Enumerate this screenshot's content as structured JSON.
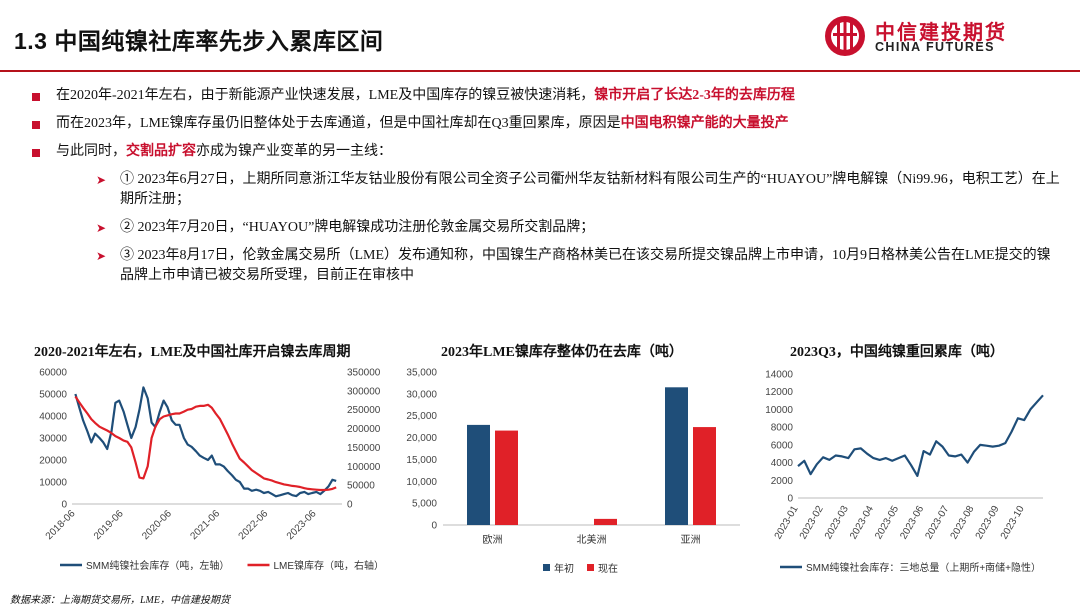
{
  "header": {
    "title": "1.3 中国纯镍社库率先步入累库区间",
    "logo_cn": "中信建投期货",
    "logo_en": "CHINA FUTURES",
    "accent_color": "#c8102e"
  },
  "bullets": [
    {
      "pre": "在2020年-2021年左右，由于新能源产业快速发展，LME及中国库存的镍豆被快速消耗，",
      "hl": "镍市开启了长达2-3年的去库历程",
      "post": ""
    },
    {
      "pre": "而在2023年，LME镍库存虽仍旧整体处于去库通道，但是中国社库却在Q3重回累库，原因是",
      "hl": "中国电积镍产能的大量投产",
      "post": ""
    },
    {
      "pre": "与此同时，",
      "hl": "交割品扩容",
      "post": "亦成为镍产业变革的另一主线："
    }
  ],
  "subbullets": [
    "① 2023年6月27日，上期所同意浙江华友钴业股份有限公司全资子公司衢州华友钴新材料有限公司生产的“HUAYOU”牌电解镍（Ni99.96，电积工艺）在上期所注册；",
    "② 2023年7月20日，“HUAYOU”牌电解镍成功注册伦敦金属交易所交割品牌；",
    "③ 2023年8月17日，伦敦金属交易所（LME）发布通知称，中国镍生产商格林美已在该交易所提交镍品牌上市申请，10月9日格林美公告在LME提交的镍品牌上市申请已被交易所受理，目前正在审核中"
  ],
  "chart_data": [
    {
      "type": "line",
      "title": "2020-2021年左右，LME及中国社库开启镍去库周期",
      "x_ticks": [
        "2018-06",
        "2019-06",
        "2020-06",
        "2021-06",
        "2022-06",
        "2023-06"
      ],
      "y_left_ticks": [
        "0",
        "10000",
        "20000",
        "30000",
        "40000",
        "50000",
        "60000"
      ],
      "y_right_ticks": [
        "0",
        "50000",
        "100000",
        "150000",
        "200000",
        "250000",
        "300000",
        "350000"
      ],
      "ylim_left": [
        0,
        60000
      ],
      "ylim_right": [
        0,
        350000
      ],
      "series": [
        {
          "name": "SMM纯镍社会库存（吨，左轴）",
          "axis": "left",
          "color": "#1f4e79",
          "x": [
            2018.42,
            2018.5,
            2018.58,
            2018.67,
            2018.75,
            2018.83,
            2018.92,
            2019.0,
            2019.08,
            2019.17,
            2019.25,
            2019.33,
            2019.42,
            2019.5,
            2019.58,
            2019.67,
            2019.75,
            2019.83,
            2019.92,
            2020.0,
            2020.08,
            2020.17,
            2020.25,
            2020.33,
            2020.42,
            2020.5,
            2020.58,
            2020.67,
            2020.75,
            2020.83,
            2020.92,
            2021.0,
            2021.08,
            2021.17,
            2021.25,
            2021.33,
            2021.42,
            2021.5,
            2021.58,
            2021.67,
            2021.75,
            2021.83,
            2021.92,
            2022.0,
            2022.08,
            2022.17,
            2022.25,
            2022.33,
            2022.42,
            2022.5,
            2022.58,
            2022.67,
            2022.75,
            2022.83,
            2022.92,
            2023.0,
            2023.08,
            2023.17,
            2023.25,
            2023.33,
            2023.42,
            2023.5,
            2023.58,
            2023.67,
            2023.75,
            2023.83
          ],
          "y": [
            50000,
            44000,
            38000,
            33000,
            28000,
            32000,
            30000,
            28000,
            25000,
            33000,
            46000,
            47000,
            42000,
            36000,
            30000,
            35000,
            43000,
            53000,
            48000,
            37000,
            35000,
            42000,
            47000,
            44000,
            38000,
            36000,
            36000,
            30000,
            27000,
            26000,
            24000,
            22000,
            21000,
            20000,
            22000,
            18000,
            18000,
            17000,
            15000,
            13000,
            11000,
            10000,
            7000,
            7000,
            6000,
            6500,
            6000,
            5000,
            5500,
            4500,
            3500,
            4000,
            4500,
            5000,
            4000,
            3600,
            5000,
            5500,
            4500,
            5000,
            5500,
            4500,
            6000,
            8000,
            11000,
            10500
          ]
        },
        {
          "name": "LME镍库存（吨，右轴）",
          "axis": "right",
          "color": "#e02128",
          "x": [
            2018.42,
            2018.5,
            2018.58,
            2018.67,
            2018.75,
            2018.83,
            2018.92,
            2019.0,
            2019.08,
            2019.17,
            2019.25,
            2019.33,
            2019.42,
            2019.5,
            2019.58,
            2019.67,
            2019.75,
            2019.83,
            2019.92,
            2020.0,
            2020.08,
            2020.17,
            2020.25,
            2020.33,
            2020.42,
            2020.5,
            2020.58,
            2020.67,
            2020.75,
            2020.83,
            2020.92,
            2021.0,
            2021.08,
            2021.17,
            2021.25,
            2021.33,
            2021.42,
            2021.5,
            2021.58,
            2021.67,
            2021.75,
            2021.83,
            2021.92,
            2022.0,
            2022.08,
            2022.17,
            2022.25,
            2022.33,
            2022.42,
            2022.5,
            2022.58,
            2022.67,
            2022.75,
            2022.83,
            2022.92,
            2023.0,
            2023.08,
            2023.17,
            2023.25,
            2023.33,
            2023.42,
            2023.5,
            2023.58,
            2023.67,
            2023.75,
            2023.83
          ],
          "y": [
            285000,
            270000,
            255000,
            240000,
            225000,
            215000,
            205000,
            200000,
            195000,
            188000,
            180000,
            175000,
            168000,
            165000,
            150000,
            110000,
            70000,
            68000,
            100000,
            175000,
            205000,
            225000,
            232000,
            235000,
            238000,
            240000,
            240000,
            245000,
            250000,
            252000,
            258000,
            260000,
            260000,
            263000,
            255000,
            240000,
            225000,
            205000,
            185000,
            160000,
            140000,
            120000,
            110000,
            100000,
            90000,
            82000,
            75000,
            68000,
            65000,
            62000,
            58000,
            55000,
            52000,
            50000,
            48000,
            47000,
            45000,
            42000,
            40000,
            39000,
            38000,
            37000,
            37000,
            38000,
            40000,
            44000
          ]
        }
      ]
    },
    {
      "type": "bar",
      "title": "2023年LME镍库存整体仍在去库（吨）",
      "categories": [
        "欧洲",
        "北美洲",
        "亚洲"
      ],
      "y_ticks": [
        "0",
        "5,000",
        "10,000",
        "15,000",
        "20,000",
        "25,000",
        "30,000",
        "35,000"
      ],
      "ylim": [
        0,
        35000
      ],
      "series": [
        {
          "name": "年初",
          "color": "#1f4e79",
          "values": [
            22900,
            0,
            31500
          ]
        },
        {
          "name": "现在",
          "color": "#e02128",
          "values": [
            21600,
            1400,
            22400
          ]
        }
      ]
    },
    {
      "type": "line",
      "title": "2023Q3，中国纯镍重回累库（吨）",
      "x_ticks": [
        "2023-01",
        "2023-02",
        "2023-03",
        "2023-04",
        "2023-05",
        "2023-06",
        "2023-07",
        "2023-08",
        "2023-09",
        "2023-10"
      ],
      "y_ticks": [
        "0",
        "2000",
        "4000",
        "6000",
        "8000",
        "10000",
        "12000",
        "14000"
      ],
      "ylim": [
        0,
        14000
      ],
      "series": [
        {
          "name": "SMM纯镍社会库存：三地总量（上期所+南储+隐性）",
          "color": "#1f4e79",
          "x": [
            0,
            0.25,
            0.5,
            0.75,
            1.0,
            1.25,
            1.5,
            1.75,
            2.0,
            2.25,
            2.5,
            2.75,
            3.0,
            3.25,
            3.5,
            3.75,
            4.0,
            4.25,
            4.5,
            4.75,
            5.0,
            5.25,
            5.5,
            5.75,
            6.0,
            6.25,
            6.5,
            6.75,
            7.0,
            7.25,
            7.5,
            7.75,
            8.0,
            8.25,
            8.5,
            8.75,
            9.0,
            9.25,
            9.5,
            9.75
          ],
          "y": [
            3600,
            4200,
            2700,
            3800,
            4600,
            4300,
            4800,
            4700,
            4500,
            5500,
            5600,
            5000,
            4500,
            4300,
            4500,
            4200,
            4500,
            4800,
            3700,
            2500,
            5300,
            4900,
            6400,
            5800,
            4800,
            4700,
            4900,
            4000,
            5200,
            6000,
            5900,
            5800,
            5900,
            6200,
            7500,
            9000,
            8800,
            10000,
            10800,
            11600
          ]
        }
      ]
    }
  ],
  "source": "数据来源：上海期货交易所，LME，中信建投期货"
}
